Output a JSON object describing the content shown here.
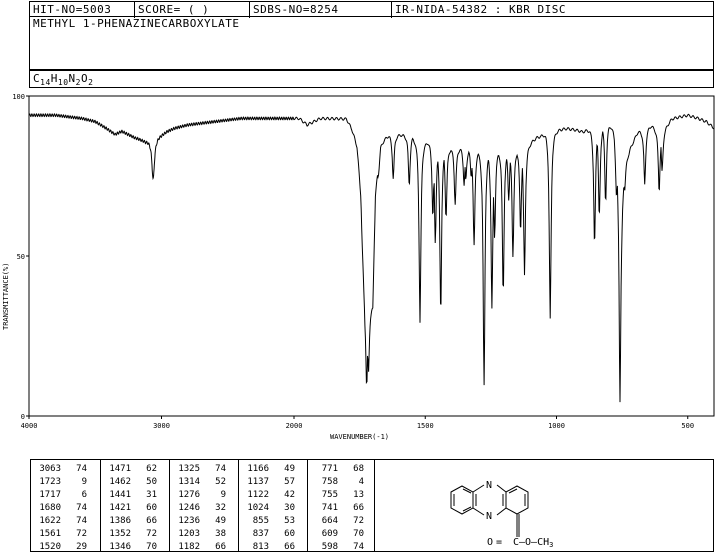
{
  "header": {
    "hit_no": "HIT-NO=5003",
    "score": "SCORE=  (   )",
    "sdbs_no": "SDBS-NO=8254",
    "ir_id": "IR-NIDA-54382 : KBR DISC",
    "compound_name": "METHYL 1-PHENAZINECARBOXYLATE",
    "formula_parts": {
      "c": "C",
      "c_n": "14",
      "h": "H",
      "h_n": "10",
      "n": "N",
      "n_n": "2",
      "o": "O",
      "o_n": "2"
    }
  },
  "chart_data": {
    "type": "line",
    "xlabel": "WAVENUMBER(-1)",
    "ylabel": "TRANSMITTANCE(%)",
    "xlim": [
      4000,
      400
    ],
    "ylim": [
      0,
      100
    ],
    "x_ticks": [
      4000,
      3000,
      2000,
      1500,
      1000,
      500
    ],
    "y_ticks": [
      0,
      50,
      100
    ],
    "grid": false,
    "baseline": [
      [
        4000,
        94
      ],
      [
        3800,
        94
      ],
      [
        3600,
        93
      ],
      [
        3500,
        92
      ],
      [
        3420,
        90
      ],
      [
        3350,
        88
      ],
      [
        3300,
        89
      ],
      [
        3200,
        87
      ],
      [
        3120,
        86
      ],
      [
        3000,
        88
      ],
      [
        2960,
        89
      ],
      [
        2900,
        90
      ],
      [
        2800,
        91
      ],
      [
        2600,
        92
      ],
      [
        2400,
        93
      ],
      [
        2200,
        93
      ],
      [
        2050,
        93
      ],
      [
        1980,
        93
      ],
      [
        1950,
        91
      ],
      [
        1900,
        93
      ],
      [
        1850,
        93
      ],
      [
        1800,
        93
      ],
      [
        1780,
        90
      ],
      [
        1760,
        85
      ],
      [
        1745,
        70
      ],
      [
        1740,
        55
      ],
      [
        1730,
        35
      ],
      [
        1700,
        35
      ],
      [
        1690,
        70
      ],
      [
        1670,
        85
      ],
      [
        1640,
        88
      ],
      [
        1560,
        88
      ],
      [
        1480,
        86
      ],
      [
        1400,
        84
      ],
      [
        1300,
        84
      ],
      [
        1220,
        84
      ],
      [
        1150,
        84
      ],
      [
        1100,
        86
      ],
      [
        1060,
        88
      ],
      [
        1040,
        90
      ],
      [
        1000,
        90
      ],
      [
        960,
        90
      ],
      [
        900,
        89
      ],
      [
        860,
        91
      ],
      [
        800,
        92
      ],
      [
        780,
        90
      ],
      [
        760,
        75
      ],
      [
        720,
        84
      ],
      [
        690,
        89
      ],
      [
        640,
        91
      ],
      [
        600,
        89
      ],
      [
        560,
        93
      ],
      [
        500,
        94
      ],
      [
        460,
        93
      ],
      [
        430,
        92
      ],
      [
        400,
        90
      ]
    ],
    "peaks": [
      {
        "x": 3063,
        "y": 74
      },
      {
        "x": 1723,
        "y": 9
      },
      {
        "x": 1717,
        "y": 6
      },
      {
        "x": 1680,
        "y": 74
      },
      {
        "x": 1622,
        "y": 74
      },
      {
        "x": 1561,
        "y": 72
      },
      {
        "x": 1520,
        "y": 29
      },
      {
        "x": 1471,
        "y": 62
      },
      {
        "x": 1462,
        "y": 50
      },
      {
        "x": 1441,
        "y": 31
      },
      {
        "x": 1421,
        "y": 60
      },
      {
        "x": 1386,
        "y": 66
      },
      {
        "x": 1352,
        "y": 72
      },
      {
        "x": 1346,
        "y": 70
      },
      {
        "x": 1325,
        "y": 74
      },
      {
        "x": 1314,
        "y": 52
      },
      {
        "x": 1276,
        "y": 9
      },
      {
        "x": 1246,
        "y": 32
      },
      {
        "x": 1236,
        "y": 49
      },
      {
        "x": 1203,
        "y": 38
      },
      {
        "x": 1182,
        "y": 66
      },
      {
        "x": 1166,
        "y": 49
      },
      {
        "x": 1137,
        "y": 57
      },
      {
        "x": 1122,
        "y": 42
      },
      {
        "x": 1024,
        "y": 30
      },
      {
        "x": 855,
        "y": 53
      },
      {
        "x": 837,
        "y": 60
      },
      {
        "x": 813,
        "y": 66
      },
      {
        "x": 771,
        "y": 68
      },
      {
        "x": 758,
        "y": 4
      },
      {
        "x": 755,
        "y": 13
      },
      {
        "x": 741,
        "y": 66
      },
      {
        "x": 664,
        "y": 72
      },
      {
        "x": 609,
        "y": 70
      },
      {
        "x": 598,
        "y": 74
      }
    ]
  },
  "peak_table": {
    "columns": [
      [
        [
          "3063",
          "74"
        ],
        [
          "1723",
          "9"
        ],
        [
          "1717",
          "6"
        ],
        [
          "1680",
          "74"
        ],
        [
          "1622",
          "74"
        ],
        [
          "1561",
          "72"
        ],
        [
          "1520",
          "29"
        ]
      ],
      [
        [
          "1471",
          "62"
        ],
        [
          "1462",
          "50"
        ],
        [
          "1441",
          "31"
        ],
        [
          "1421",
          "60"
        ],
        [
          "1386",
          "66"
        ],
        [
          "1352",
          "72"
        ],
        [
          "1346",
          "70"
        ]
      ],
      [
        [
          "1325",
          "74"
        ],
        [
          "1314",
          "52"
        ],
        [
          "1276",
          "9"
        ],
        [
          "1246",
          "32"
        ],
        [
          "1236",
          "49"
        ],
        [
          "1203",
          "38"
        ],
        [
          "1182",
          "66"
        ]
      ],
      [
        [
          "1166",
          "49"
        ],
        [
          "1137",
          "57"
        ],
        [
          "1122",
          "42"
        ],
        [
          "1024",
          "30"
        ],
        [
          "855",
          "53"
        ],
        [
          "837",
          "60"
        ],
        [
          "813",
          "66"
        ]
      ],
      [
        [
          "771",
          "68"
        ],
        [
          "758",
          "4"
        ],
        [
          "755",
          "13"
        ],
        [
          "741",
          "66"
        ],
        [
          "664",
          "72"
        ],
        [
          "609",
          "70"
        ],
        [
          "598",
          "74"
        ]
      ]
    ]
  },
  "structure": {
    "atom_n": "N",
    "ester_label": "C—O—CH",
    "ester_sub": "3",
    "carbonyl_o": "O"
  }
}
